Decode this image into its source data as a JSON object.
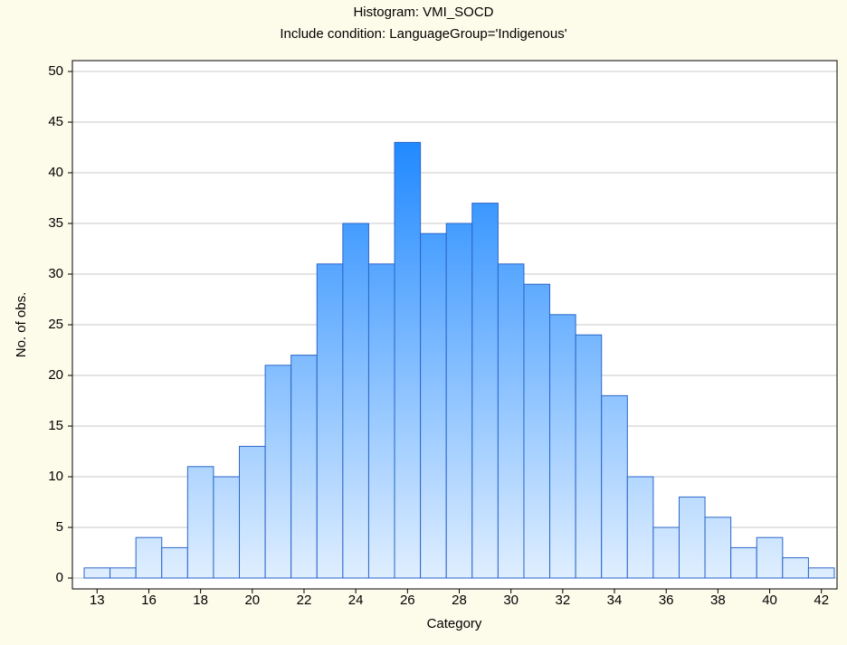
{
  "chart_data": {
    "type": "bar",
    "title": "Histogram: VMI_SOCD",
    "subtitle": "Include condition: LanguageGroup='Indigenous'",
    "x_label": "Category",
    "y_label": "No. of obs.",
    "categories": [
      13,
      null,
      16,
      null,
      18,
      null,
      20,
      null,
      22,
      null,
      24,
      null,
      26,
      null,
      28,
      null,
      30,
      null,
      32,
      null,
      34,
      null,
      36,
      null,
      38,
      null,
      40,
      null,
      42
    ],
    "values": [
      1,
      1,
      4,
      3,
      11,
      10,
      13,
      21,
      22,
      31,
      35,
      31,
      43,
      34,
      35,
      37,
      31,
      29,
      26,
      24,
      18,
      10,
      5,
      8,
      6,
      3,
      4,
      2,
      1
    ],
    "color": "#1e88ff",
    "ylim": [
      0,
      50
    ],
    "yticks": [
      0,
      5,
      10,
      15,
      20,
      25,
      30,
      35,
      40,
      45,
      50
    ],
    "grid": true
  }
}
